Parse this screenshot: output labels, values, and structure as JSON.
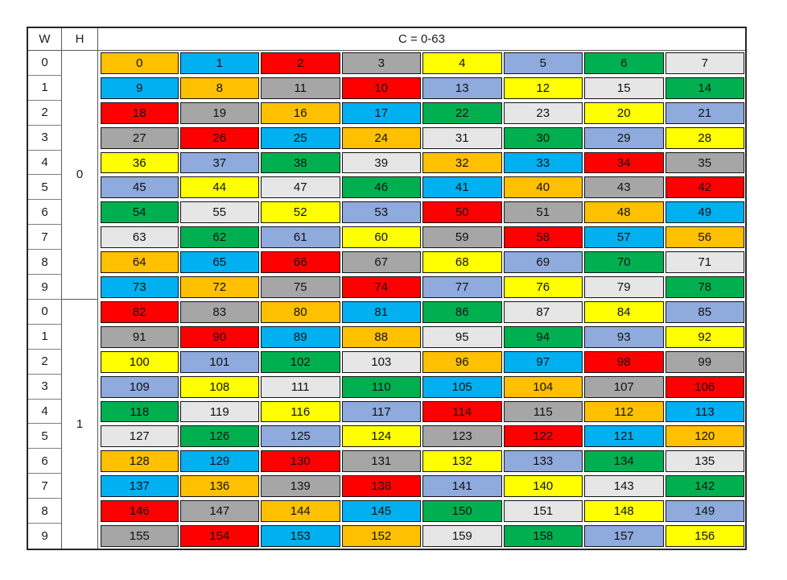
{
  "chart_data": {
    "type": "table",
    "title": "C = 0-63",
    "header": {
      "w_label": "W",
      "h_label": "H",
      "c_label": "C = 0-63"
    },
    "palette": {
      "orange": "#FFC000",
      "cyan": "#00B0F0",
      "red": "#FF0000",
      "gray": "#A6A6A6",
      "yellow": "#FFFF00",
      "periwinkle": "#8FAADC",
      "green": "#00B050",
      "lightgray": "#E7E6E6"
    },
    "sections": [
      {
        "h": "0",
        "rows": [
          {
            "w": "0",
            "cells": [
              [
                0,
                "orange"
              ],
              [
                1,
                "cyan"
              ],
              [
                2,
                "red"
              ],
              [
                3,
                "gray"
              ],
              [
                4,
                "yellow"
              ],
              [
                5,
                "periwinkle"
              ],
              [
                6,
                "green"
              ],
              [
                7,
                "lightgray"
              ]
            ]
          },
          {
            "w": "1",
            "cells": [
              [
                9,
                "cyan"
              ],
              [
                8,
                "orange"
              ],
              [
                11,
                "gray"
              ],
              [
                10,
                "red"
              ],
              [
                13,
                "periwinkle"
              ],
              [
                12,
                "yellow"
              ],
              [
                15,
                "lightgray"
              ],
              [
                14,
                "green"
              ]
            ]
          },
          {
            "w": "2",
            "cells": [
              [
                18,
                "red"
              ],
              [
                19,
                "gray"
              ],
              [
                16,
                "orange"
              ],
              [
                17,
                "cyan"
              ],
              [
                22,
                "green"
              ],
              [
                23,
                "lightgray"
              ],
              [
                20,
                "yellow"
              ],
              [
                21,
                "periwinkle"
              ]
            ]
          },
          {
            "w": "3",
            "cells": [
              [
                27,
                "gray"
              ],
              [
                26,
                "red"
              ],
              [
                25,
                "cyan"
              ],
              [
                24,
                "orange"
              ],
              [
                31,
                "lightgray"
              ],
              [
                30,
                "green"
              ],
              [
                29,
                "periwinkle"
              ],
              [
                28,
                "yellow"
              ]
            ]
          },
          {
            "w": "4",
            "cells": [
              [
                36,
                "yellow"
              ],
              [
                37,
                "periwinkle"
              ],
              [
                38,
                "green"
              ],
              [
                39,
                "lightgray"
              ],
              [
                32,
                "orange"
              ],
              [
                33,
                "cyan"
              ],
              [
                34,
                "red"
              ],
              [
                35,
                "gray"
              ]
            ]
          },
          {
            "w": "5",
            "cells": [
              [
                45,
                "periwinkle"
              ],
              [
                44,
                "yellow"
              ],
              [
                47,
                "lightgray"
              ],
              [
                46,
                "green"
              ],
              [
                41,
                "cyan"
              ],
              [
                40,
                "orange"
              ],
              [
                43,
                "gray"
              ],
              [
                42,
                "red"
              ]
            ]
          },
          {
            "w": "6",
            "cells": [
              [
                54,
                "green"
              ],
              [
                55,
                "lightgray"
              ],
              [
                52,
                "yellow"
              ],
              [
                53,
                "periwinkle"
              ],
              [
                50,
                "red"
              ],
              [
                51,
                "gray"
              ],
              [
                48,
                "orange"
              ],
              [
                49,
                "cyan"
              ]
            ]
          },
          {
            "w": "7",
            "cells": [
              [
                63,
                "lightgray"
              ],
              [
                62,
                "green"
              ],
              [
                61,
                "periwinkle"
              ],
              [
                60,
                "yellow"
              ],
              [
                59,
                "gray"
              ],
              [
                58,
                "red"
              ],
              [
                57,
                "cyan"
              ],
              [
                56,
                "orange"
              ]
            ]
          },
          {
            "w": "8",
            "cells": [
              [
                64,
                "orange"
              ],
              [
                65,
                "cyan"
              ],
              [
                66,
                "red"
              ],
              [
                67,
                "gray"
              ],
              [
                68,
                "yellow"
              ],
              [
                69,
                "periwinkle"
              ],
              [
                70,
                "green"
              ],
              [
                71,
                "lightgray"
              ]
            ]
          },
          {
            "w": "9",
            "cells": [
              [
                73,
                "cyan"
              ],
              [
                72,
                "orange"
              ],
              [
                75,
                "gray"
              ],
              [
                74,
                "red"
              ],
              [
                77,
                "periwinkle"
              ],
              [
                76,
                "yellow"
              ],
              [
                79,
                "lightgray"
              ],
              [
                78,
                "green"
              ]
            ]
          }
        ]
      },
      {
        "h": "1",
        "rows": [
          {
            "w": "0",
            "cells": [
              [
                82,
                "red"
              ],
              [
                83,
                "gray"
              ],
              [
                80,
                "orange"
              ],
              [
                81,
                "cyan"
              ],
              [
                86,
                "green"
              ],
              [
                87,
                "lightgray"
              ],
              [
                84,
                "yellow"
              ],
              [
                85,
                "periwinkle"
              ]
            ]
          },
          {
            "w": "1",
            "cells": [
              [
                91,
                "gray"
              ],
              [
                90,
                "red"
              ],
              [
                89,
                "cyan"
              ],
              [
                88,
                "orange"
              ],
              [
                95,
                "lightgray"
              ],
              [
                94,
                "green"
              ],
              [
                93,
                "periwinkle"
              ],
              [
                92,
                "yellow"
              ]
            ]
          },
          {
            "w": "2",
            "cells": [
              [
                100,
                "yellow"
              ],
              [
                101,
                "periwinkle"
              ],
              [
                102,
                "green"
              ],
              [
                103,
                "lightgray"
              ],
              [
                96,
                "orange"
              ],
              [
                97,
                "cyan"
              ],
              [
                98,
                "red"
              ],
              [
                99,
                "gray"
              ]
            ]
          },
          {
            "w": "3",
            "cells": [
              [
                109,
                "periwinkle"
              ],
              [
                108,
                "yellow"
              ],
              [
                111,
                "lightgray"
              ],
              [
                110,
                "green"
              ],
              [
                105,
                "cyan"
              ],
              [
                104,
                "orange"
              ],
              [
                107,
                "gray"
              ],
              [
                106,
                "red"
              ]
            ]
          },
          {
            "w": "4",
            "cells": [
              [
                118,
                "green"
              ],
              [
                119,
                "lightgray"
              ],
              [
                116,
                "yellow"
              ],
              [
                117,
                "periwinkle"
              ],
              [
                114,
                "red"
              ],
              [
                115,
                "gray"
              ],
              [
                112,
                "orange"
              ],
              [
                113,
                "cyan"
              ]
            ]
          },
          {
            "w": "5",
            "cells": [
              [
                127,
                "lightgray"
              ],
              [
                126,
                "green"
              ],
              [
                125,
                "periwinkle"
              ],
              [
                124,
                "yellow"
              ],
              [
                123,
                "gray"
              ],
              [
                122,
                "red"
              ],
              [
                121,
                "cyan"
              ],
              [
                120,
                "orange"
              ]
            ]
          },
          {
            "w": "6",
            "cells": [
              [
                128,
                "orange"
              ],
              [
                129,
                "cyan"
              ],
              [
                130,
                "red"
              ],
              [
                131,
                "gray"
              ],
              [
                132,
                "yellow"
              ],
              [
                133,
                "periwinkle"
              ],
              [
                134,
                "green"
              ],
              [
                135,
                "lightgray"
              ]
            ]
          },
          {
            "w": "7",
            "cells": [
              [
                137,
                "cyan"
              ],
              [
                136,
                "orange"
              ],
              [
                139,
                "gray"
              ],
              [
                138,
                "red"
              ],
              [
                141,
                "periwinkle"
              ],
              [
                140,
                "yellow"
              ],
              [
                143,
                "lightgray"
              ],
              [
                142,
                "green"
              ]
            ]
          },
          {
            "w": "8",
            "cells": [
              [
                146,
                "red"
              ],
              [
                147,
                "gray"
              ],
              [
                144,
                "orange"
              ],
              [
                145,
                "cyan"
              ],
              [
                150,
                "green"
              ],
              [
                151,
                "lightgray"
              ],
              [
                148,
                "yellow"
              ],
              [
                149,
                "periwinkle"
              ]
            ]
          },
          {
            "w": "9",
            "cells": [
              [
                155,
                "gray"
              ],
              [
                154,
                "red"
              ],
              [
                153,
                "cyan"
              ],
              [
                152,
                "orange"
              ],
              [
                159,
                "lightgray"
              ],
              [
                158,
                "green"
              ],
              [
                157,
                "periwinkle"
              ],
              [
                156,
                "yellow"
              ]
            ]
          }
        ]
      }
    ]
  }
}
